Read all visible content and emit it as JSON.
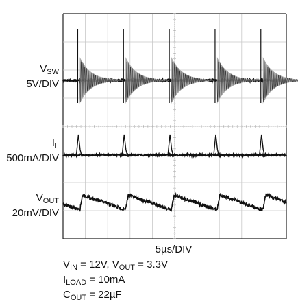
{
  "chart_data": {
    "type": "line",
    "title": "",
    "timebase": "5µs/DIV",
    "grid": true,
    "divisions": {
      "x": 10,
      "y": 8
    },
    "trace_color": "#111111",
    "ring_color": "#9a9a9a",
    "series": [
      {
        "id": "vsw",
        "name_main": "V",
        "name_sub": "SW",
        "scale": "5V/DIV",
        "description_type": "switch-node with damped ringing",
        "event_times_div": [
          0.75,
          2.8,
          4.85,
          6.9,
          8.95
        ]
      },
      {
        "id": "il",
        "name_main": "I",
        "name_sub": "L",
        "scale": "500mA/DIV",
        "description_type": "inductor current pulses",
        "event_times_div": [
          0.75,
          2.8,
          4.85,
          6.9,
          8.95
        ]
      },
      {
        "id": "vout",
        "name_main": "V",
        "name_sub": "OUT",
        "scale": "20mV/DIV",
        "description_type": "output ripple sawtooth",
        "event_times_div": [
          0.75,
          2.8,
          4.85,
          6.9,
          8.95
        ]
      }
    ],
    "conditions": {
      "line1": {
        "a_main": "V",
        "a_sub": "IN",
        "a_val": " = 12V, ",
        "b_main": "V",
        "b_sub": "OUT",
        "b_val": " = 3.3V"
      },
      "line2": {
        "main": "I",
        "sub": "LOAD",
        "val": " = 10mA"
      },
      "line3": {
        "main": "C",
        "sub": "OUT",
        "val": " = 22µF"
      }
    }
  }
}
